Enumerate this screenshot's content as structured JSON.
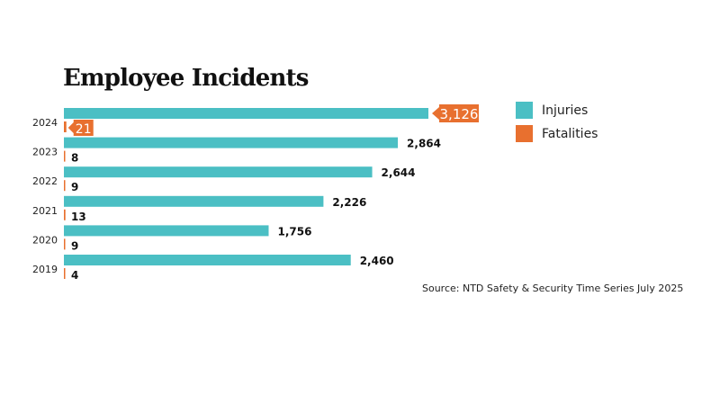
{
  "chart_data": {
    "type": "bar",
    "orientation": "horizontal",
    "title": "Employee Incidents",
    "categories": [
      "2024",
      "2023",
      "2022",
      "2021",
      "2020",
      "2019"
    ],
    "series": [
      {
        "name": "Injuries",
        "color": "#4bbfc4",
        "values": [
          3126,
          2864,
          2644,
          2226,
          1756,
          2460
        ],
        "labels": [
          "3,126",
          "2,864",
          "2,644",
          "2,226",
          "1,756",
          "2,460"
        ]
      },
      {
        "name": "Fatalities",
        "color": "#e8702f",
        "values": [
          21,
          8,
          9,
          13,
          9,
          4
        ],
        "labels": [
          "21",
          "8",
          "9",
          "13",
          "9",
          "4"
        ]
      }
    ],
    "highlight_category": "2024",
    "legend_position": "right",
    "grid": false,
    "source": "Source: NTD Safety & Security Time Series July 2025"
  }
}
